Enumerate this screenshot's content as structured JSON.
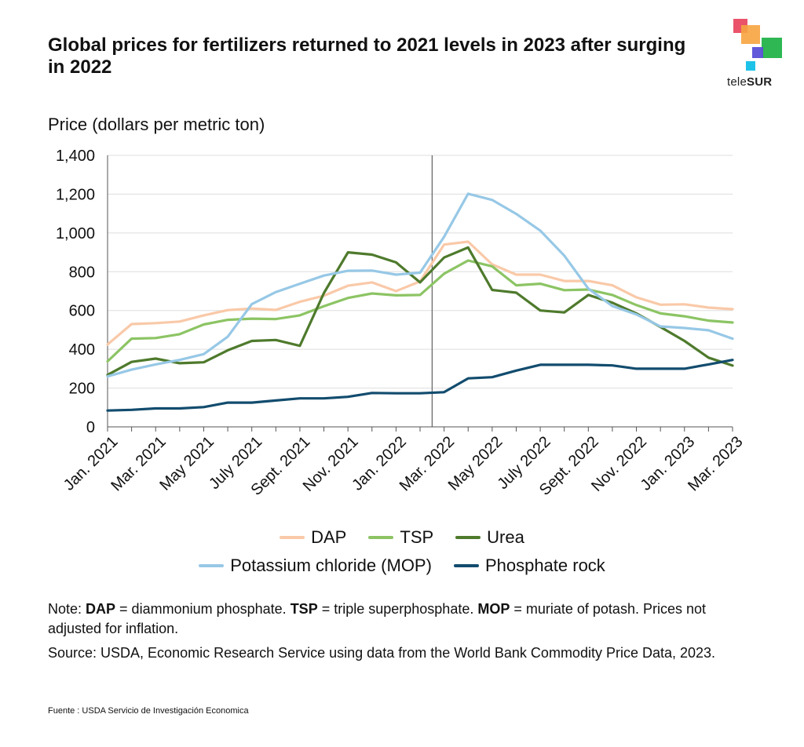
{
  "title": "Global prices for fertilizers returned to 2021 levels in 2023 after surging in 2022",
  "logo": {
    "text_a": "tele",
    "text_b": "SUR"
  },
  "ylabel": "Price (dollars per metric ton)",
  "note": {
    "pre": "Note: ",
    "dap_b": "DAP",
    "dap_t": " = diammonium phosphate. ",
    "tsp_b": "TSP",
    "tsp_t": " = triple superphosphate. ",
    "mop_b": "MOP",
    "mop_t": " = muriate of potash. Prices not adjusted for inflation."
  },
  "source": "Source: USDA, Economic Research Service using data from the World Bank Commodity Price Data, 2023.",
  "footer": "Fuente : USDA Servicio de Investigación Economica",
  "chart_data": {
    "type": "line",
    "title": "Global prices for fertilizers returned to 2021 levels in 2023 after surging in 2022",
    "ylabel": "Price (dollars per metric ton)",
    "xlabel": "",
    "ylim": [
      0,
      1400
    ],
    "yticks": [
      0,
      200,
      400,
      600,
      800,
      1000,
      1200,
      1400
    ],
    "ytick_labels": [
      "0",
      "200",
      "400",
      "600",
      "800",
      "1,000",
      "1,200",
      "1,400"
    ],
    "x": [
      "Jan. 2021",
      "Feb. 2021",
      "Mar. 2021",
      "Apr. 2021",
      "May 2021",
      "June 2021",
      "July 2021",
      "Aug. 2021",
      "Sept. 2021",
      "Oct. 2021",
      "Nov. 2021",
      "Dec. 2021",
      "Jan. 2022",
      "Feb. 2022",
      "Mar. 2022",
      "Apr. 2022",
      "May 2022",
      "June 2022",
      "July 2022",
      "Aug. 2022",
      "Sept. 2022",
      "Oct. 2022",
      "Nov. 2022",
      "Dec. 2022",
      "Jan. 2023",
      "Feb. 2023",
      "Mar. 2023"
    ],
    "xtick_labels": [
      {
        "index": 0,
        "label": "Jan. 2021"
      },
      {
        "index": 2,
        "label": "Mar. 2021"
      },
      {
        "index": 4,
        "label": "May 2021"
      },
      {
        "index": 6,
        "label": "July 2021"
      },
      {
        "index": 8,
        "label": "Sept. 2021"
      },
      {
        "index": 10,
        "label": "Nov. 2021"
      },
      {
        "index": 12,
        "label": "Jan. 2022"
      },
      {
        "index": 14,
        "label": "Mar. 2022"
      },
      {
        "index": 16,
        "label": "May 2022"
      },
      {
        "index": 18,
        "label": "July 2022"
      },
      {
        "index": 20,
        "label": "Sept. 2022"
      },
      {
        "index": 22,
        "label": "Nov. 2022"
      },
      {
        "index": 24,
        "label": "Jan. 2023"
      },
      {
        "index": 26,
        "label": "Mar. 2023"
      }
    ],
    "reference_line_x": 13.5,
    "series": [
      {
        "name": "DAP",
        "color": "#f9c9a8",
        "values": [
          425,
          530,
          535,
          543,
          575,
          602,
          610,
          603,
          645,
          676,
          728,
          745,
          700,
          750,
          940,
          955,
          838,
          785,
          785,
          752,
          752,
          730,
          668,
          630,
          632,
          615,
          607
        ]
      },
      {
        "name": "TSP",
        "color": "#8cc464",
        "values": [
          338,
          455,
          458,
          478,
          528,
          552,
          558,
          556,
          575,
          622,
          665,
          688,
          678,
          680,
          790,
          858,
          828,
          730,
          738,
          705,
          708,
          680,
          628,
          585,
          570,
          548,
          538
        ]
      },
      {
        "name": "Urea",
        "color": "#4e7a2c",
        "values": [
          268,
          335,
          352,
          328,
          333,
          395,
          443,
          448,
          418,
          690,
          900,
          888,
          848,
          745,
          873,
          925,
          706,
          692,
          600,
          590,
          680,
          640,
          585,
          515,
          443,
          357,
          316
        ]
      },
      {
        "name": "Potassium chloride (MOP)",
        "color": "#97c8e6",
        "values": [
          260,
          295,
          322,
          345,
          375,
          465,
          633,
          695,
          738,
          780,
          805,
          806,
          785,
          795,
          980,
          1202,
          1170,
          1098,
          1012,
          883,
          713,
          623,
          580,
          518,
          510,
          498,
          455
        ]
      },
      {
        "name": "Phosphate rock",
        "color": "#124c6e",
        "values": [
          84,
          88,
          95,
          95,
          102,
          125,
          125,
          136,
          147,
          147,
          155,
          175,
          173,
          173,
          179,
          250,
          256,
          290,
          320,
          320,
          320,
          317,
          300,
          300,
          300,
          322,
          345
        ]
      }
    ],
    "legend_rows": [
      [
        "DAP",
        "TSP",
        "Urea"
      ],
      [
        "Potassium chloride (MOP)",
        "Phosphate rock"
      ]
    ]
  }
}
